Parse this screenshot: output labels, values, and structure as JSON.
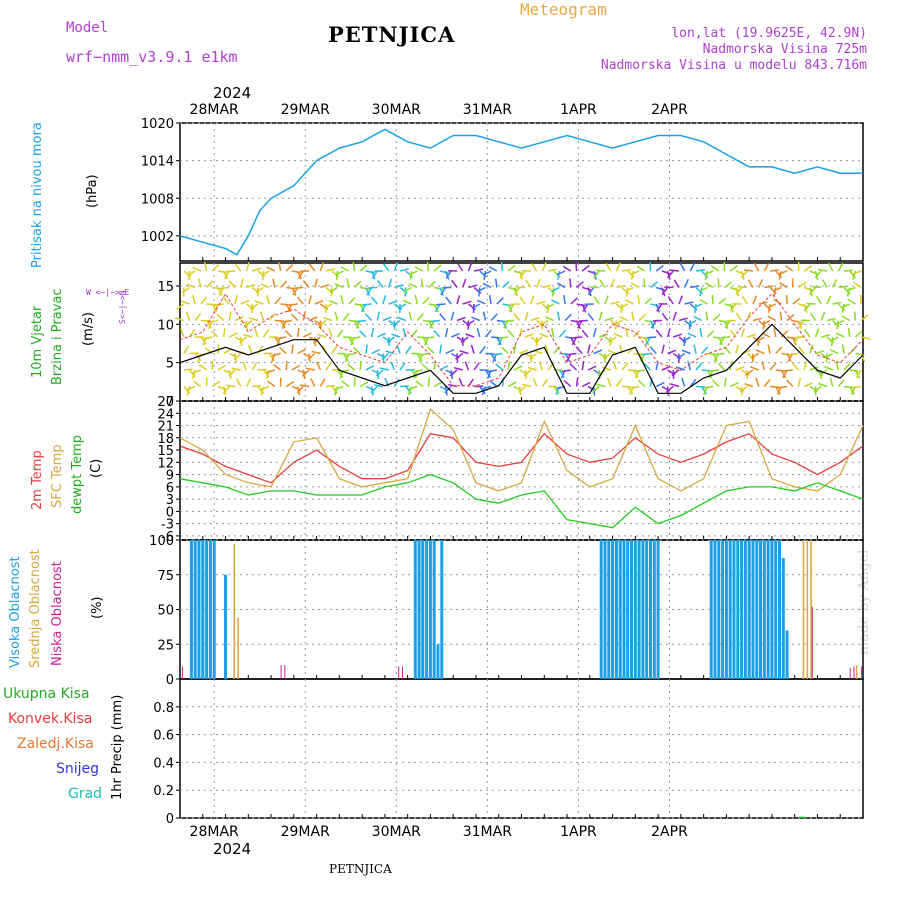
{
  "header": {
    "title": "PETNJICA",
    "model_label": "Model",
    "model_name": "wrf−nmm_v3.9.1  e1km",
    "meteogram": "Meteogram",
    "lonlat": "lon,lat (19.9625E, 42.9N)",
    "altitude": "Nadmorska Visina 725m",
    "model_altitude": "Nadmorska Visina u modelu 843.716m"
  },
  "footer": {
    "station": "PETNJICA"
  },
  "credit": "made by Angel",
  "colors": {
    "pressure": "#1aa0e6",
    "temp2m": "#e83c3c",
    "sfc_temp": "#d8a840",
    "dewpt": "#22cc22",
    "high_cloud": "#1aa0e6",
    "mid_cloud": "#d8a840",
    "low_cloud": "#cc2299",
    "wind_speed": "#000000",
    "gust": "#e83c3c"
  },
  "axis": {
    "year_top": "2024",
    "year_bottom": "2024",
    "date_labels": [
      "28MAR",
      "29MAR",
      "30MAR",
      "31MAR",
      "1APR",
      "2APR"
    ]
  },
  "panels": {
    "pressure": {
      "labels": [
        "Pritisak na nivou mora"
      ],
      "unit": "(hPa)"
    },
    "wind": {
      "labels": [
        "10m Vjetar",
        "Brzina i Pravac"
      ],
      "unit": "(m/s)",
      "compass": "W  <−|−>  E",
      "compass_ns": "S<−|−>N"
    },
    "temp": {
      "labels": [
        "2m Temp",
        "SFC Temp",
        "dewpt Temp"
      ],
      "unit": "(C)"
    },
    "cloud": {
      "labels": [
        "Visoka Oblacnost",
        "Srednja Oblacnost",
        "Niska Oblacnost"
      ],
      "unit": "(%)"
    },
    "precip": {
      "labels": [
        "Ukupna Kisa",
        "Konvek.Kisa",
        "Zaledj.Kisa",
        "Snijeg",
        "Grad"
      ],
      "unit": "1hr Precip (mm)"
    }
  },
  "chart_data": [
    {
      "type": "line",
      "title": "Pritisak na nivou mora",
      "ylabel": "(hPa)",
      "ylim": [
        998,
        1020
      ],
      "yticks": [
        1002,
        1008,
        1014,
        1020
      ],
      "x_hours": [
        0,
        6,
        12,
        15,
        18,
        21,
        24,
        30,
        36,
        42,
        48,
        54,
        60,
        66,
        72,
        78,
        84,
        90,
        96,
        102,
        108,
        114,
        120,
        126,
        132,
        138,
        144,
        150,
        156,
        162,
        168,
        174,
        180
      ],
      "series": [
        {
          "values": [
            1002,
            1001,
            1000,
            999,
            1002,
            1006,
            1008,
            1010,
            1014,
            1016,
            1017,
            1019,
            1017,
            1016,
            1018,
            1018,
            1017,
            1016,
            1017,
            1018,
            1017,
            1016,
            1017,
            1018,
            1018,
            1017,
            1015,
            1013,
            1013,
            1012,
            1013,
            1012,
            1012
          ]
        }
      ]
    },
    {
      "type": "line",
      "title": "10m Vjetar",
      "ylabel": "(m/s)",
      "ylim": [
        0,
        18
      ],
      "yticks": [
        0,
        5,
        10,
        15
      ],
      "x_hours": [
        0,
        6,
        12,
        18,
        24,
        30,
        36,
        42,
        48,
        54,
        60,
        66,
        72,
        78,
        84,
        90,
        96,
        102,
        108,
        114,
        120,
        126,
        132,
        138,
        144,
        150,
        156,
        162,
        168,
        174,
        180
      ],
      "series": [
        {
          "values": [
            5,
            6,
            7,
            6,
            7,
            8,
            8,
            4,
            3,
            2,
            3,
            4,
            1,
            1,
            2,
            6,
            7,
            1,
            1,
            6,
            7,
            1,
            1,
            3,
            4,
            7,
            10,
            7,
            4,
            3,
            6
          ]
        },
        {
          "values": [
            8,
            9,
            14,
            9,
            11,
            12,
            10,
            7,
            6,
            5,
            9,
            6,
            2,
            2,
            3,
            9,
            10,
            5,
            6,
            10,
            9,
            5,
            4,
            6,
            7,
            11,
            14,
            10,
            6,
            5,
            8
          ]
        }
      ]
    },
    {
      "type": "line",
      "title": "2m Temp / SFC Temp / dewpt Temp",
      "ylabel": "(C)",
      "ylim": [
        -7,
        27
      ],
      "yticks": [
        -6,
        -3,
        0,
        3,
        6,
        9,
        12,
        15,
        18,
        21,
        24,
        27
      ],
      "x_hours": [
        0,
        6,
        12,
        18,
        24,
        30,
        36,
        42,
        48,
        54,
        60,
        66,
        72,
        78,
        84,
        90,
        96,
        102,
        108,
        114,
        120,
        126,
        132,
        138,
        144,
        150,
        156,
        162,
        168,
        174,
        180
      ],
      "series": [
        {
          "name": "2m Temp",
          "values": [
            16,
            14,
            11,
            9,
            7,
            12,
            15,
            11,
            8,
            8,
            10,
            19,
            18,
            12,
            11,
            12,
            19,
            14,
            12,
            13,
            18,
            14,
            12,
            14,
            17,
            19,
            14,
            12,
            9,
            12,
            16
          ]
        },
        {
          "name": "SFC Temp",
          "values": [
            18,
            15,
            9,
            7,
            6,
            17,
            18,
            8,
            6,
            7,
            8,
            25,
            20,
            7,
            5,
            7,
            22,
            10,
            6,
            8,
            21,
            8,
            5,
            8,
            21,
            22,
            8,
            6,
            5,
            9,
            21
          ]
        },
        {
          "name": "dewpt Temp",
          "values": [
            8,
            7,
            6,
            4,
            5,
            5,
            4,
            4,
            4,
            6,
            7,
            9,
            7,
            3,
            2,
            4,
            5,
            -2,
            -3,
            -4,
            1,
            -3,
            -1,
            2,
            5,
            6,
            6,
            5,
            7,
            5,
            3
          ]
        }
      ]
    },
    {
      "type": "bar",
      "title": "Oblacnost",
      "ylabel": "(%)",
      "ylim": [
        0,
        100
      ],
      "yticks": [
        0,
        25,
        50,
        75,
        100
      ],
      "series": [
        {
          "name": "Visoka Oblacnost",
          "x_hours": [
            3,
            4,
            5,
            6,
            7,
            8,
            9,
            12,
            62,
            63,
            64,
            65,
            66,
            67,
            68,
            69,
            111,
            112,
            113,
            114,
            115,
            116,
            117,
            118,
            119,
            120,
            121,
            122,
            123,
            124,
            125,
            126,
            140,
            141,
            142,
            143,
            144,
            145,
            146,
            147,
            148,
            149,
            150,
            151,
            152,
            153,
            154,
            155,
            156,
            157,
            158,
            159,
            160
          ],
          "values": [
            100,
            100,
            100,
            100,
            100,
            100,
            100,
            75,
            100,
            100,
            100,
            100,
            100,
            100,
            25,
            100,
            100,
            100,
            100,
            100,
            100,
            100,
            100,
            100,
            100,
            100,
            100,
            100,
            100,
            100,
            100,
            100,
            100,
            100,
            100,
            100,
            100,
            100,
            100,
            100,
            100,
            100,
            100,
            100,
            100,
            100,
            100,
            100,
            100,
            100,
            100,
            87,
            35
          ]
        },
        {
          "name": "Srednja Oblacnost",
          "x_hours": [
            14,
            15,
            164,
            165,
            166,
            178
          ],
          "values": [
            97,
            44,
            100,
            100,
            100,
            10
          ]
        },
        {
          "name": "Niska Oblacnost",
          "x_hours": [
            0,
            26,
            27,
            57,
            58,
            166,
            176,
            177,
            179
          ],
          "values": [
            9,
            10,
            10,
            9,
            9,
            52,
            8,
            9,
            9
          ]
        }
      ]
    },
    {
      "type": "bar",
      "title": "1hr Precip",
      "ylabel": "1hr Precip (mm)",
      "ylim": [
        0,
        1
      ],
      "yticks": [
        0,
        0.2,
        0.4,
        0.6,
        0.8
      ],
      "series": [
        {
          "name": "Ukupna Kisa",
          "x_hours": [
            164
          ],
          "values": [
            0.01
          ]
        }
      ]
    }
  ]
}
